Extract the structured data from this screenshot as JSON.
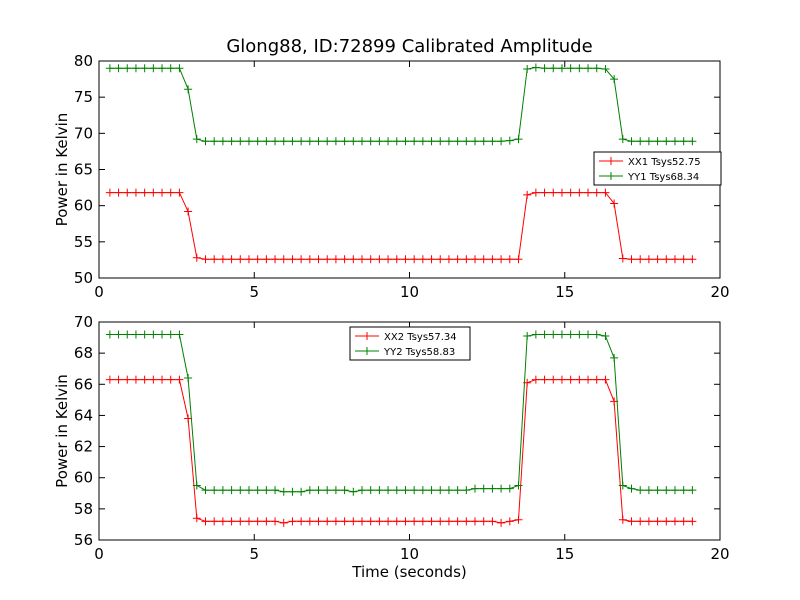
{
  "window": {
    "title": "Glong88, ID:72899 Calibrated Amplitude"
  },
  "colors": {
    "series_a": "#ff0000",
    "series_b": "#008000",
    "axes": "#000000",
    "background": "#ffffff"
  },
  "chart_data": [
    {
      "type": "line",
      "title": "Glong88, ID:72899 Calibrated Amplitude",
      "xlabel": "",
      "ylabel": "Power in Kelvin",
      "xlim": [
        0,
        20
      ],
      "ylim": [
        50,
        80
      ],
      "xticks": [
        0,
        5,
        10,
        15,
        20
      ],
      "yticks": [
        50,
        55,
        60,
        65,
        70,
        75,
        80
      ],
      "grid": false,
      "legend_position": "center-right",
      "x": [
        0.35,
        0.63,
        0.91,
        1.19,
        1.47,
        1.75,
        2.03,
        2.31,
        2.59,
        2.87,
        3.15,
        3.43,
        3.71,
        3.99,
        4.27,
        4.55,
        4.83,
        5.11,
        5.39,
        5.67,
        5.95,
        6.23,
        6.51,
        6.79,
        7.07,
        7.35,
        7.63,
        7.91,
        8.19,
        8.47,
        8.75,
        9.03,
        9.31,
        9.59,
        9.87,
        10.15,
        10.43,
        10.71,
        10.99,
        11.27,
        11.55,
        11.83,
        12.11,
        12.39,
        12.67,
        12.95,
        13.23,
        13.51,
        13.79,
        14.07,
        14.35,
        14.63,
        14.91,
        15.19,
        15.47,
        15.75,
        16.03,
        16.31,
        16.59,
        16.87,
        17.15,
        17.43,
        17.71,
        17.99,
        18.27,
        18.55,
        18.83,
        19.11
      ],
      "series": [
        {
          "name": "XX1 Tsys52.75",
          "color": "#ff0000",
          "values": [
            61.8,
            61.8,
            61.8,
            61.8,
            61.8,
            61.8,
            61.8,
            61.8,
            61.8,
            59.2,
            52.8,
            52.6,
            52.6,
            52.6,
            52.6,
            52.6,
            52.6,
            52.6,
            52.6,
            52.6,
            52.6,
            52.6,
            52.6,
            52.6,
            52.6,
            52.6,
            52.6,
            52.6,
            52.6,
            52.6,
            52.6,
            52.6,
            52.6,
            52.6,
            52.6,
            52.6,
            52.6,
            52.6,
            52.6,
            52.6,
            52.6,
            52.6,
            52.6,
            52.6,
            52.6,
            52.6,
            52.6,
            52.6,
            61.5,
            61.8,
            61.8,
            61.8,
            61.8,
            61.8,
            61.8,
            61.8,
            61.8,
            61.8,
            60.3,
            52.7,
            52.6,
            52.6,
            52.6,
            52.6,
            52.6,
            52.6,
            52.6,
            52.6
          ]
        },
        {
          "name": "YY1 Tsys68.34",
          "color": "#008000",
          "values": [
            79.0,
            79.0,
            79.0,
            79.0,
            79.0,
            79.0,
            79.0,
            79.0,
            79.0,
            76.1,
            69.2,
            68.9,
            68.9,
            68.9,
            68.9,
            68.9,
            68.9,
            68.9,
            68.9,
            68.9,
            68.9,
            68.9,
            68.9,
            68.9,
            68.9,
            68.9,
            68.9,
            68.9,
            68.9,
            68.9,
            68.9,
            68.9,
            68.9,
            68.9,
            68.9,
            68.9,
            68.9,
            68.9,
            68.9,
            68.9,
            68.9,
            68.9,
            68.9,
            68.9,
            68.9,
            68.9,
            69.0,
            69.2,
            78.9,
            79.1,
            79.0,
            79.0,
            79.0,
            79.0,
            79.0,
            79.0,
            79.0,
            78.9,
            77.5,
            69.2,
            68.9,
            68.9,
            68.9,
            68.9,
            68.9,
            68.9,
            68.9,
            68.9
          ]
        }
      ]
    },
    {
      "type": "line",
      "title": "",
      "xlabel": "Time (seconds)",
      "ylabel": "Power in Kelvin",
      "xlim": [
        0,
        20
      ],
      "ylim": [
        56,
        70
      ],
      "xticks": [
        0,
        5,
        10,
        15,
        20
      ],
      "yticks": [
        56,
        58,
        60,
        62,
        64,
        66,
        68,
        70
      ],
      "grid": false,
      "legend_position": "upper-center",
      "x": [
        0.35,
        0.63,
        0.91,
        1.19,
        1.47,
        1.75,
        2.03,
        2.31,
        2.59,
        2.87,
        3.15,
        3.43,
        3.71,
        3.99,
        4.27,
        4.55,
        4.83,
        5.11,
        5.39,
        5.67,
        5.95,
        6.23,
        6.51,
        6.79,
        7.07,
        7.35,
        7.63,
        7.91,
        8.19,
        8.47,
        8.75,
        9.03,
        9.31,
        9.59,
        9.87,
        10.15,
        10.43,
        10.71,
        10.99,
        11.27,
        11.55,
        11.83,
        12.11,
        12.39,
        12.67,
        12.95,
        13.23,
        13.51,
        13.79,
        14.07,
        14.35,
        14.63,
        14.91,
        15.19,
        15.47,
        15.75,
        16.03,
        16.31,
        16.59,
        16.87,
        17.15,
        17.43,
        17.71,
        17.99,
        18.27,
        18.55,
        18.83,
        19.11
      ],
      "series": [
        {
          "name": "XX2 Tsys57.34",
          "color": "#ff0000",
          "values": [
            66.3,
            66.3,
            66.3,
            66.3,
            66.3,
            66.3,
            66.3,
            66.3,
            66.3,
            63.8,
            57.4,
            57.2,
            57.2,
            57.2,
            57.2,
            57.2,
            57.2,
            57.2,
            57.2,
            57.2,
            57.1,
            57.2,
            57.2,
            57.2,
            57.2,
            57.2,
            57.2,
            57.2,
            57.2,
            57.2,
            57.2,
            57.2,
            57.2,
            57.2,
            57.2,
            57.2,
            57.2,
            57.2,
            57.2,
            57.2,
            57.2,
            57.2,
            57.2,
            57.2,
            57.2,
            57.1,
            57.2,
            57.3,
            66.1,
            66.3,
            66.3,
            66.3,
            66.3,
            66.3,
            66.3,
            66.3,
            66.3,
            66.3,
            64.9,
            57.3,
            57.2,
            57.2,
            57.2,
            57.2,
            57.2,
            57.2,
            57.2,
            57.2
          ]
        },
        {
          "name": "YY2 Tsys58.83",
          "color": "#008000",
          "values": [
            69.2,
            69.2,
            69.2,
            69.2,
            69.2,
            69.2,
            69.2,
            69.2,
            69.2,
            66.4,
            59.5,
            59.2,
            59.2,
            59.2,
            59.2,
            59.2,
            59.2,
            59.2,
            59.2,
            59.2,
            59.1,
            59.1,
            59.1,
            59.2,
            59.2,
            59.2,
            59.2,
            59.2,
            59.1,
            59.2,
            59.2,
            59.2,
            59.2,
            59.2,
            59.2,
            59.2,
            59.2,
            59.2,
            59.2,
            59.2,
            59.2,
            59.2,
            59.3,
            59.3,
            59.3,
            59.3,
            59.3,
            59.5,
            69.1,
            69.2,
            69.2,
            69.2,
            69.2,
            69.2,
            69.2,
            69.2,
            69.2,
            69.1,
            67.7,
            59.5,
            59.3,
            59.2,
            59.2,
            59.2,
            59.2,
            59.2,
            59.2,
            59.2
          ]
        }
      ]
    }
  ]
}
